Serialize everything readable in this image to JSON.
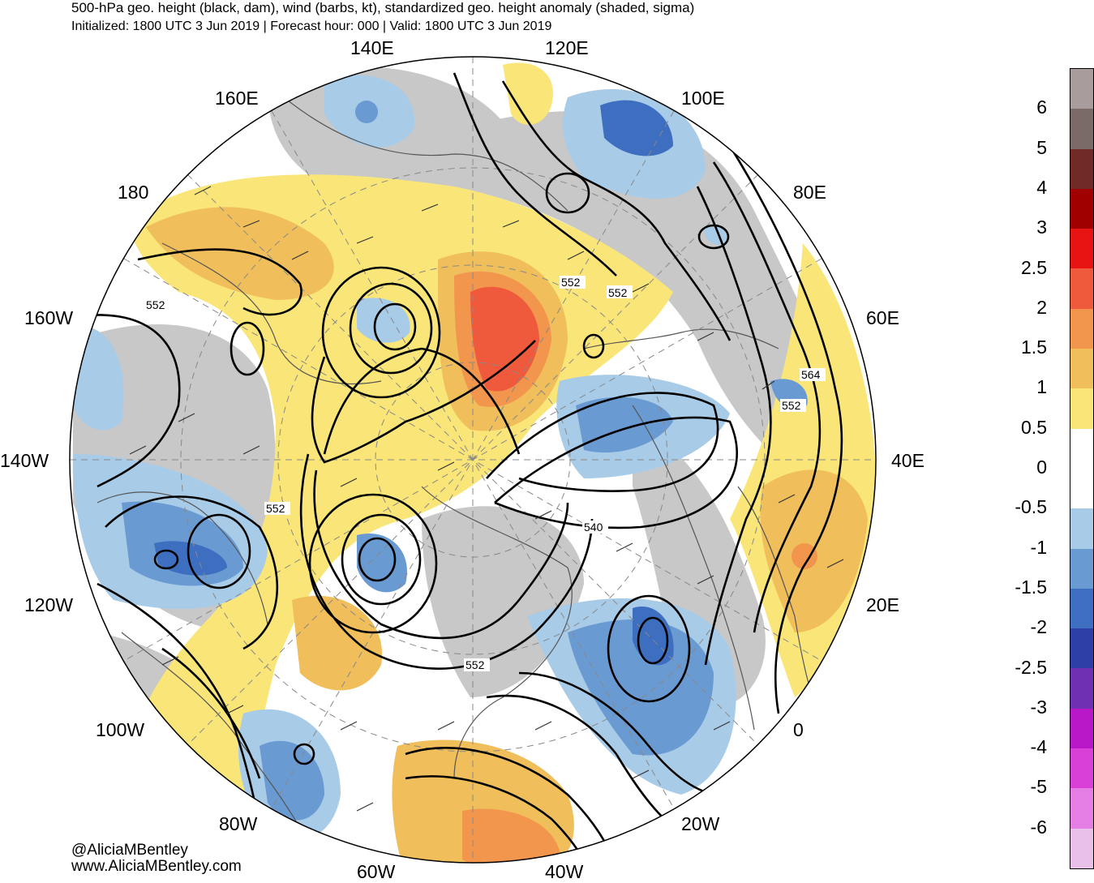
{
  "header": {
    "title": "500-hPa geo. height (black, dam), wind (barbs, kt), standardized geo. height anomaly (shaded, sigma)",
    "subtitle": "Initialized: 1800 UTC 3 Jun 2019 | Forecast hour: 000 | Valid: 1800 UTC 3 Jun 2019"
  },
  "map": {
    "projection": "north polar stereographic",
    "longitude_labels": [
      "140E",
      "120E",
      "160E",
      "100E",
      "180",
      "80E",
      "160W",
      "60E",
      "140W",
      "40E",
      "120W",
      "20E",
      "100W",
      "0",
      "80W",
      "20W",
      "60W",
      "40W"
    ],
    "contour_labels": [
      "552",
      "552",
      "552",
      "552",
      "564",
      "552",
      "540",
      "552"
    ],
    "colors": {
      "land_gray": "#c8c8c8",
      "coast": "#555555",
      "contour": "#000000"
    }
  },
  "colorbar": {
    "labels": [
      "6",
      "5",
      "4",
      "3",
      "2.5",
      "2",
      "1.5",
      "1",
      "0.5",
      "0",
      "-0.5",
      "-1",
      "-1.5",
      "-2",
      "-2.5",
      "-3",
      "-4",
      "-5",
      "-6"
    ],
    "colors": [
      "#a89c9c",
      "#7a6a68",
      "#702a28",
      "#a00000",
      "#e81414",
      "#f05a3c",
      "#f2964e",
      "#f0be5a",
      "#fae678",
      "#ffffff",
      "#ffffff",
      "#a8cbe8",
      "#6a9ad2",
      "#3d6ebf",
      "#2e40a8",
      "#7030b4",
      "#b818c8",
      "#d840d8",
      "#e47ee4",
      "#e8c0e8"
    ]
  },
  "credits": {
    "handle": "@AliciaMBentley",
    "website": "www.AliciaMBentley.com"
  }
}
